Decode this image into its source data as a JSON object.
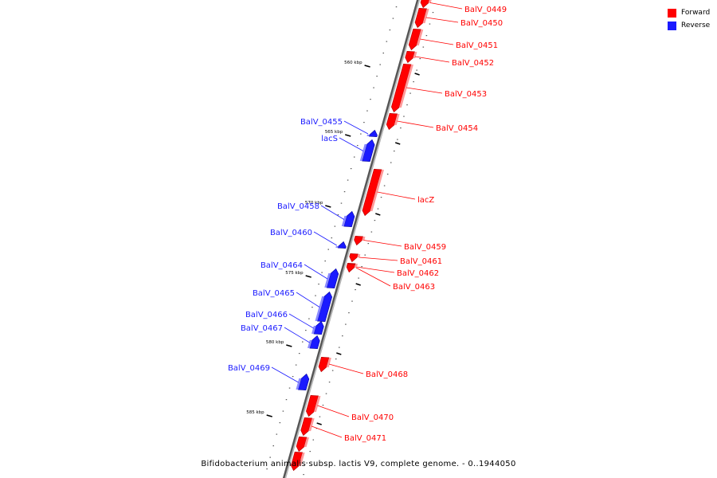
{
  "title": "Bifidobacterium animalis subsp. lactis V9, complete genome. - 0..1944050",
  "legend": [
    {
      "label": "Forward",
      "color": "#ff0000"
    },
    {
      "label": "Reverse",
      "color": "#1a1aff"
    }
  ],
  "colors": {
    "forward": "#ff0000",
    "reverse": "#1a1aff",
    "backbone": "#888888"
  },
  "ticks": [
    "560 kbp",
    "565 kbp",
    "570 kbp",
    "575 kbp",
    "580 kbp",
    "585 kbp"
  ],
  "genes": [
    {
      "name": "BalV_0449",
      "strand": "forward"
    },
    {
      "name": "BalV_0450",
      "strand": "forward"
    },
    {
      "name": "BalV_0451",
      "strand": "forward"
    },
    {
      "name": "BalV_0452",
      "strand": "forward"
    },
    {
      "name": "BalV_0453",
      "strand": "forward"
    },
    {
      "name": "BalV_0454",
      "strand": "forward"
    },
    {
      "name": "BalV_0455",
      "strand": "reverse"
    },
    {
      "name": "lacS",
      "strand": "reverse"
    },
    {
      "name": "lacZ",
      "strand": "forward"
    },
    {
      "name": "BalV_0458",
      "strand": "reverse"
    },
    {
      "name": "BalV_0460",
      "strand": "reverse"
    },
    {
      "name": "BalV_0459",
      "strand": "forward"
    },
    {
      "name": "BalV_0461",
      "strand": "forward"
    },
    {
      "name": "BalV_0462",
      "strand": "forward"
    },
    {
      "name": "BalV_0463",
      "strand": "forward"
    },
    {
      "name": "BalV_0464",
      "strand": "reverse"
    },
    {
      "name": "BalV_0465",
      "strand": "reverse"
    },
    {
      "name": "BalV_0466",
      "strand": "reverse"
    },
    {
      "name": "BalV_0467",
      "strand": "reverse"
    },
    {
      "name": "BalV_0468",
      "strand": "forward"
    },
    {
      "name": "BalV_0469",
      "strand": "reverse"
    },
    {
      "name": "BalV_0470",
      "strand": "forward"
    },
    {
      "name": "BalV_0471",
      "strand": "forward"
    }
  ]
}
